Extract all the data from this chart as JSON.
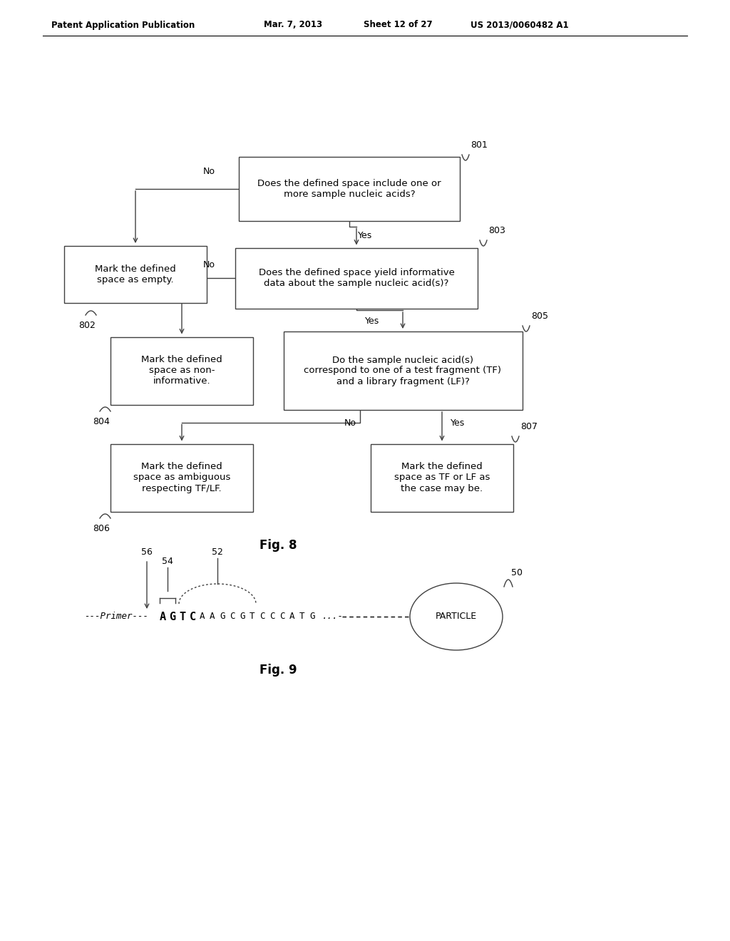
{
  "background_color": "#ffffff",
  "header_text": "Patent Application Publication",
  "header_date": "Mar. 7, 2013",
  "header_sheet": "Sheet 12 of 27",
  "header_patent": "US 2013/0060482 A1",
  "fig8_label": "Fig. 8",
  "fig9_label": "Fig. 9"
}
